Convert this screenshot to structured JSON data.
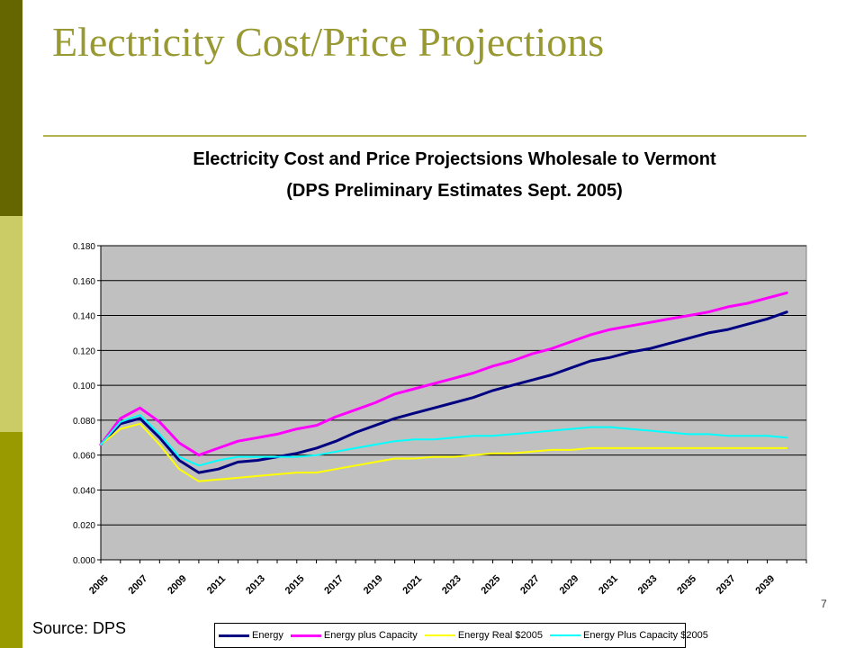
{
  "slide": {
    "title": "Electricity Cost/Price Projections",
    "source": "Source: DPS",
    "page_number": "7"
  },
  "colors": {
    "sidebar_top": "#666600",
    "sidebar_mid": "#cccc66",
    "sidebar_bottom": "#999900",
    "title": "#999933",
    "plot_background": "#c0c0c0"
  },
  "chart_data": {
    "type": "line",
    "title": "Electricity Cost and Price Projectsions Wholesale to Vermont",
    "subtitle": "(DPS Preliminary Estimates Sept. 2005)",
    "xlabel": "",
    "ylabel": "",
    "ylim": [
      0,
      0.18
    ],
    "xlim": [
      2005,
      2041
    ],
    "grid": true,
    "legend_position": "bottom",
    "y_ticks": [
      "0.000",
      "0.020",
      "0.040",
      "0.060",
      "0.080",
      "0.100",
      "0.120",
      "0.140",
      "0.160",
      "0.180"
    ],
    "x_ticks": [
      "2005",
      "2007",
      "2009",
      "2011",
      "2013",
      "2015",
      "2017",
      "2019",
      "2021",
      "2023",
      "2025",
      "2027",
      "2029",
      "2031",
      "2033",
      "2035",
      "2037",
      "2039"
    ],
    "x": [
      2005,
      2006,
      2007,
      2008,
      2009,
      2010,
      2011,
      2012,
      2013,
      2014,
      2015,
      2016,
      2017,
      2018,
      2019,
      2020,
      2021,
      2022,
      2023,
      2024,
      2025,
      2026,
      2027,
      2028,
      2029,
      2030,
      2031,
      2032,
      2033,
      2034,
      2035,
      2036,
      2037,
      2038,
      2039,
      2040
    ],
    "series": [
      {
        "name": "Energy",
        "color": "#000080",
        "values": [
          0.066,
          0.078,
          0.081,
          0.07,
          0.057,
          0.05,
          0.052,
          0.056,
          0.057,
          0.059,
          0.061,
          0.064,
          0.068,
          0.073,
          0.077,
          0.081,
          0.084,
          0.087,
          0.09,
          0.093,
          0.097,
          0.1,
          0.103,
          0.106,
          0.11,
          0.114,
          0.116,
          0.119,
          0.121,
          0.124,
          0.127,
          0.13,
          0.132,
          0.135,
          0.138,
          0.142
        ]
      },
      {
        "name": "Energy plus Capacity",
        "color": "#ff00ff",
        "values": [
          0.066,
          0.081,
          0.087,
          0.079,
          0.067,
          0.06,
          0.064,
          0.068,
          0.07,
          0.072,
          0.075,
          0.077,
          0.082,
          0.086,
          0.09,
          0.095,
          0.098,
          0.101,
          0.104,
          0.107,
          0.111,
          0.114,
          0.118,
          0.121,
          0.125,
          0.129,
          0.132,
          0.134,
          0.136,
          0.138,
          0.14,
          0.142,
          0.145,
          0.147,
          0.15,
          0.153
        ]
      },
      {
        "name": "Energy Real $2005",
        "color": "#ffff00",
        "values": [
          0.066,
          0.075,
          0.078,
          0.066,
          0.052,
          0.045,
          0.046,
          0.047,
          0.048,
          0.049,
          0.05,
          0.05,
          0.052,
          0.054,
          0.056,
          0.058,
          0.058,
          0.059,
          0.059,
          0.06,
          0.061,
          0.061,
          0.062,
          0.063,
          0.063,
          0.064,
          0.064,
          0.064,
          0.064,
          0.064,
          0.064,
          0.064,
          0.064,
          0.064,
          0.064,
          0.064
        ]
      },
      {
        "name": "Energy Plus Capacity $2005",
        "color": "#00ffff",
        "values": [
          0.066,
          0.079,
          0.083,
          0.072,
          0.059,
          0.054,
          0.057,
          0.059,
          0.059,
          0.059,
          0.059,
          0.06,
          0.062,
          0.064,
          0.066,
          0.068,
          0.069,
          0.069,
          0.07,
          0.071,
          0.071,
          0.072,
          0.073,
          0.074,
          0.075,
          0.076,
          0.076,
          0.075,
          0.074,
          0.073,
          0.072,
          0.072,
          0.071,
          0.071,
          0.071,
          0.07
        ]
      }
    ]
  }
}
